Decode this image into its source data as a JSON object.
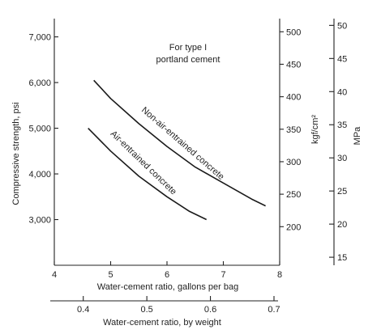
{
  "chart_data": {
    "type": "line",
    "annotation": [
      "For type I",
      "portland cement"
    ],
    "xlabel": "Water-cement ratio, gallons per bag",
    "x2label": "Water-cement ratio, by weight",
    "ylabel": "Compressive strength, psi",
    "y2label": "kgf/cm²",
    "y3label": "MPa",
    "xlim": [
      4,
      8
    ],
    "ylim": [
      2000,
      7400
    ],
    "x_ticks": [
      "4",
      "5",
      "6",
      "7",
      "8"
    ],
    "y_ticks": [
      "3,000",
      "4,000",
      "5,000",
      "6,000",
      "7,000"
    ],
    "y2_ticks": [
      "200",
      "250",
      "300",
      "350",
      "400",
      "450",
      "500"
    ],
    "y3_ticks": [
      "15",
      "20",
      "25",
      "30",
      "35",
      "40",
      "45",
      "50"
    ],
    "x2_ticks": [
      "0.4",
      "0.5",
      "0.6",
      "0.7"
    ],
    "series": [
      {
        "name": "Non-air-entrained concrete",
        "x": [
          4.7,
          5.0,
          5.5,
          6.0,
          6.5,
          7.0,
          7.5,
          7.75
        ],
        "y": [
          6050,
          5650,
          5100,
          4600,
          4150,
          3800,
          3450,
          3300
        ]
      },
      {
        "name": "Air-entrained concrete",
        "x": [
          4.6,
          5.0,
          5.5,
          6.0,
          6.4,
          6.7
        ],
        "y": [
          5000,
          4500,
          3950,
          3500,
          3180,
          3000
        ]
      }
    ]
  }
}
